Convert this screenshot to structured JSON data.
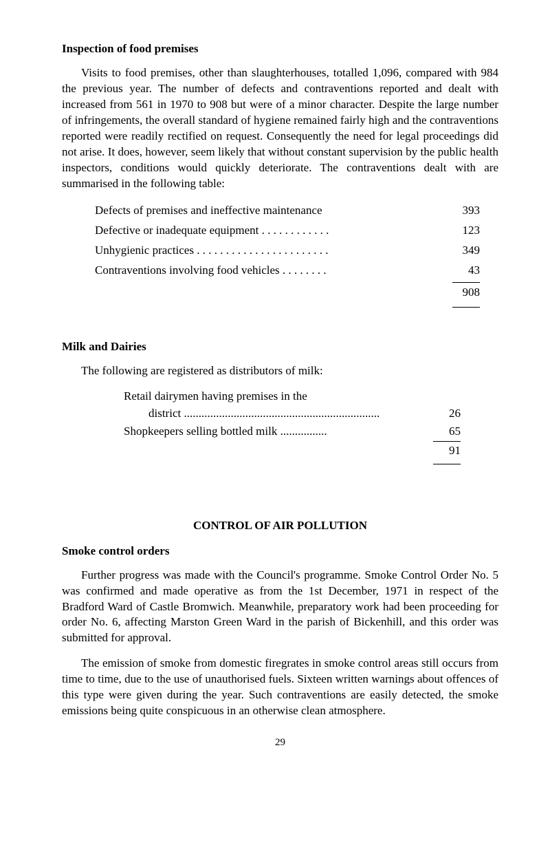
{
  "section1": {
    "heading": "Inspection of food premises",
    "para": "Visits to food premises, other than slaughterhouses, totalled 1,096, compared with 984 the previous year. The number of defects and contraventions reported and dealt with increased from 561 in 1970 to 908 but were of a minor character. Despite the large number of infringements, the overall standard of hygiene remained fairly high and the contraventions reported were readily rectified on request. Consequently the need for legal proceedings did not arise. It does, however, seem likely that without constant supervision by the public health inspectors, conditions would quickly deteriorate. The contraventions dealt with are summarised in the following table:",
    "items": [
      {
        "label": "Defects of premises and ineffective maintenance",
        "value": "393",
        "dots": ""
      },
      {
        "label": "Defective or inadequate equipment",
        "value": "123",
        "dots": " . . . . . . . . . . . ."
      },
      {
        "label": "Unhygienic practices",
        "value": "349",
        "dots": " . . . . . . . . . . . . . . . . . . . . . . ."
      },
      {
        "label": "Contraventions involving food vehicles",
        "value": "43",
        "dots": " . . . . . . . ."
      }
    ],
    "total": "908"
  },
  "section2": {
    "heading": "Milk and Dairies",
    "intro": "The following are registered as distributors of milk:",
    "items": [
      {
        "line1": "Retail dairymen having premises in the",
        "line2": "district",
        "dots2": " ...................................................................",
        "value": "26"
      },
      {
        "line1": "Shopkeepers selling bottled milk",
        "dots1": " ................",
        "value": "65"
      }
    ],
    "total": "91"
  },
  "section3": {
    "title": "CONTROL OF AIR POLLUTION",
    "heading": "Smoke control orders",
    "para1": "Further progress was made with the Council's programme. Smoke Control Order No. 5 was confirmed and made operative as from the 1st December, 1971 in respect of the Bradford Ward of Castle Bromwich. Meanwhile, preparatory work had been pro­ceeding for order No. 6, affecting Marston Green Ward in the parish of Bickenhill, and this order was submitted for approval.",
    "para2": "The emission of smoke from domestic firegrates in smoke control areas still occurs from time to time, due to the use of unauthorised fuels. Sixteen written warnings about offences of this type were given during the year. Such contraventions are easily detected, the smoke emissions being quite conspicuous in an otherwise clean atmosphere."
  },
  "pageNumber": "29"
}
